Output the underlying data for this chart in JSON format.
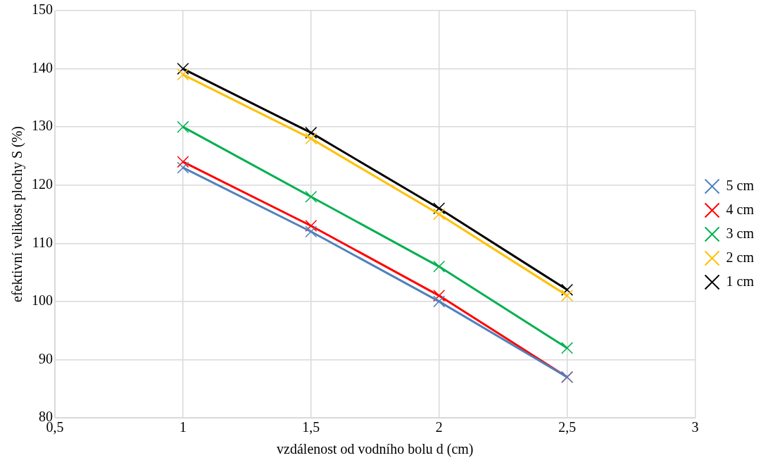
{
  "chart_data": {
    "type": "line",
    "xlabel": "vzdálenost od vodního bolu d (cm)",
    "ylabel": "efektivní velikost plochy S (%)",
    "x": [
      1,
      1.5,
      2,
      2.5
    ],
    "series": [
      {
        "name": "5 cm",
        "color": "#4f81bd",
        "values": [
          123,
          112,
          100,
          87
        ]
      },
      {
        "name": "4 cm",
        "color": "#ff0000",
        "values": [
          124,
          113,
          101,
          87
        ]
      },
      {
        "name": "3 cm",
        "color": "#00b050",
        "values": [
          130,
          118,
          106,
          92
        ]
      },
      {
        "name": "2 cm",
        "color": "#ffc000",
        "values": [
          139,
          128,
          115,
          101
        ]
      },
      {
        "name": "1 cm",
        "color": "#000000",
        "values": [
          140,
          129,
          116,
          102
        ]
      }
    ],
    "xlim": [
      0.5,
      3
    ],
    "xticks": [
      {
        "value": 0.5,
        "label": "0,5"
      },
      1,
      {
        "value": 1.5,
        "label": "1,5"
      },
      2,
      {
        "value": 2.5,
        "label": "2,5"
      },
      3
    ],
    "ylim": [
      80,
      150
    ],
    "yticks": [
      80,
      90,
      100,
      110,
      120,
      130,
      140,
      150
    ],
    "grid": true,
    "legend": "right",
    "marker": "cross",
    "line_style": "solid"
  }
}
